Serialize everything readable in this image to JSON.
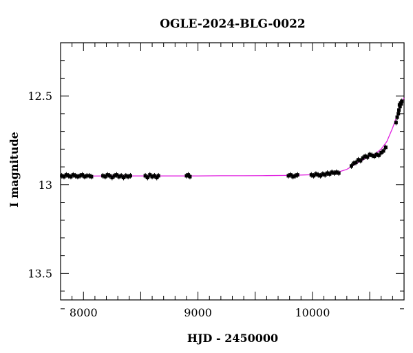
{
  "chart_data": {
    "type": "scatter",
    "title": "OGLE-2024-BLG-0022",
    "xlabel": "HJD - 2450000",
    "ylabel": "I magnitude",
    "xlim": [
      7800,
      10800
    ],
    "ylim": [
      13.65,
      12.2
    ],
    "y_inverted": true,
    "x_ticks": [
      8000,
      9000,
      10000
    ],
    "y_ticks": [
      12.5,
      13,
      13.5
    ],
    "grid": false,
    "colors": {
      "points": "#000000",
      "model": "#e020e0",
      "axes": "#000000"
    },
    "series": [
      {
        "type": "scatter",
        "marker": "filled-square-with-errorbars",
        "x": [
          7810,
          7830,
          7850,
          7870,
          7890,
          7910,
          7930,
          7950,
          7970,
          7990,
          8010,
          8030,
          8050,
          8070,
          8170,
          8190,
          8210,
          8230,
          8250,
          8270,
          8290,
          8310,
          8330,
          8350,
          8370,
          8390,
          8410,
          8540,
          8560,
          8580,
          8600,
          8620,
          8640,
          8655,
          8900,
          8915,
          8930,
          9790,
          9810,
          9830,
          9850,
          9870,
          9990,
          10010,
          10030,
          10050,
          10070,
          10090,
          10110,
          10130,
          10150,
          10170,
          10190,
          10210,
          10230,
          10340,
          10360,
          10380,
          10400,
          10420,
          10440,
          10460,
          10480,
          10500,
          10520,
          10540,
          10560,
          10580,
          10600,
          10620,
          10640,
          10730,
          10740,
          10750,
          10755,
          10760,
          10765,
          10770,
          10775,
          10780
        ],
        "y": [
          12.95,
          12.955,
          12.945,
          12.95,
          12.955,
          12.945,
          12.95,
          12.955,
          12.95,
          12.945,
          12.955,
          12.95,
          12.95,
          12.955,
          12.95,
          12.955,
          12.945,
          12.95,
          12.96,
          12.95,
          12.945,
          12.955,
          12.95,
          12.96,
          12.95,
          12.955,
          12.95,
          12.95,
          12.96,
          12.945,
          12.955,
          12.95,
          12.96,
          12.95,
          12.95,
          12.945,
          12.955,
          12.95,
          12.945,
          12.955,
          12.95,
          12.945,
          12.945,
          12.95,
          12.94,
          12.945,
          12.95,
          12.94,
          12.945,
          12.935,
          12.94,
          12.93,
          12.935,
          12.93,
          12.935,
          12.895,
          12.88,
          12.875,
          12.86,
          12.865,
          12.85,
          12.84,
          12.845,
          12.83,
          12.835,
          12.84,
          12.83,
          12.835,
          12.82,
          12.81,
          12.79,
          12.65,
          12.62,
          12.6,
          12.58,
          12.55,
          12.56,
          12.54,
          12.545,
          12.53
        ]
      },
      {
        "type": "line",
        "x": [
          7800,
          8000,
          8200,
          8400,
          8600,
          8800,
          9000,
          9200,
          9400,
          9600,
          9800,
          10000,
          10100,
          10200,
          10300,
          10400,
          10450,
          10500,
          10550,
          10600,
          10650,
          10700,
          10750,
          10800
        ],
        "y": [
          12.952,
          12.952,
          12.951,
          12.951,
          12.951,
          12.951,
          12.951,
          12.95,
          12.95,
          12.949,
          12.948,
          12.944,
          12.941,
          12.934,
          12.914,
          12.874,
          12.857,
          12.839,
          12.826,
          12.8,
          12.757,
          12.68,
          12.59,
          12.51
        ]
      }
    ]
  }
}
